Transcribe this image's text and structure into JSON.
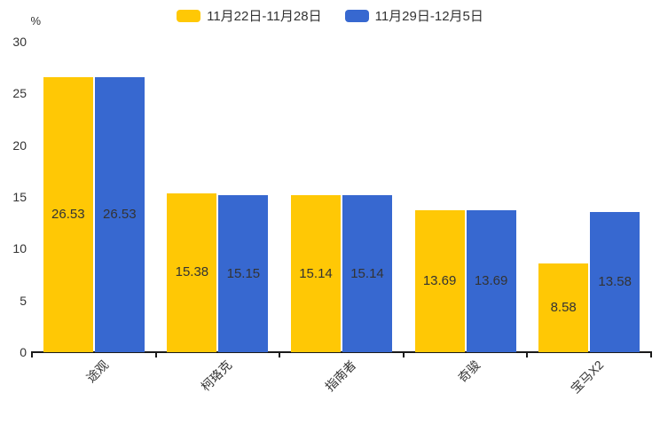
{
  "chart_data": {
    "type": "bar",
    "title": "",
    "ylabel": "%",
    "xlabel": "",
    "categories": [
      "途观",
      "柯珞克",
      "指南者",
      "奇骏",
      "宝马X2"
    ],
    "series": [
      {
        "name": "11月22日-11月28日",
        "color": "#FFC805",
        "values": [
          26.53,
          15.38,
          15.14,
          13.69,
          8.58
        ]
      },
      {
        "name": "11月29日-12月5日",
        "color": "#3768D0",
        "values": [
          26.53,
          15.15,
          15.14,
          13.69,
          13.58
        ]
      }
    ],
    "ylim": [
      0,
      30
    ],
    "yticks": [
      0,
      5,
      10,
      15,
      20,
      25,
      30
    ],
    "grid": false,
    "legend_position": "top",
    "value_labels": "inside-middle",
    "axis_color": "#1a1a1a",
    "text_color": "#333333"
  }
}
